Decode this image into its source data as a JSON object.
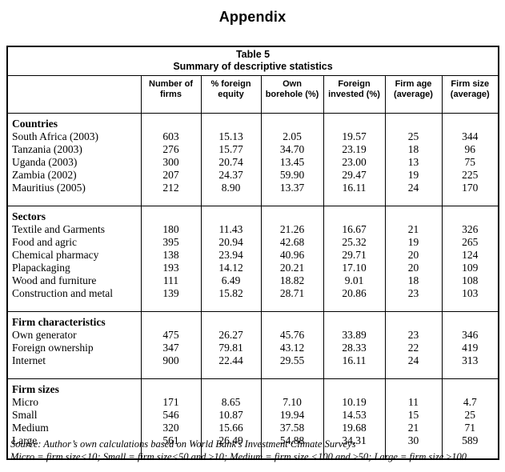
{
  "page": {
    "title": "Appendix"
  },
  "table": {
    "caption_line1": "Table 5",
    "caption_line2": "Summary of descriptive statistics",
    "columns": [
      "Number of firms",
      "% foreign equity",
      "Own borehole (%)",
      "Foreign invested (%)",
      "Firm age (average)",
      "Firm size (average)"
    ],
    "sections": [
      {
        "label": "Countries",
        "rows": [
          {
            "label": "South Africa (2003)",
            "values": [
              "603",
              "15.13",
              "2.05",
              "19.57",
              "25",
              "344"
            ]
          },
          {
            "label": "Tanzania (2003)",
            "values": [
              "276",
              "15.77",
              "34.70",
              "23.19",
              "18",
              "96"
            ]
          },
          {
            "label": "Uganda (2003)",
            "values": [
              "300",
              "20.74",
              "13.45",
              "23.00",
              "13",
              "75"
            ]
          },
          {
            "label": "Zambia (2002)",
            "values": [
              "207",
              "24.37",
              "59.90",
              "29.47",
              "19",
              "225"
            ]
          },
          {
            "label": "Mauritius (2005)",
            "values": [
              "212",
              "8.90",
              "13.37",
              "16.11",
              "24",
              "170"
            ]
          }
        ]
      },
      {
        "label": "Sectors",
        "rows": [
          {
            "label": "Textile and Garments",
            "values": [
              "180",
              "11.43",
              "21.26",
              "16.67",
              "21",
              "326"
            ]
          },
          {
            "label": "Food and agric",
            "values": [
              "395",
              "20.94",
              "42.68",
              "25.32",
              "19",
              "265"
            ]
          },
          {
            "label": "Chemical pharmacy",
            "values": [
              "138",
              "23.94",
              "40.96",
              "29.71",
              "20",
              "124"
            ]
          },
          {
            "label": "Plapackaging",
            "values": [
              "193",
              "14.12",
              "20.21",
              "17.10",
              "20",
              "109"
            ]
          },
          {
            "label": "Wood and furniture",
            "values": [
              "111",
              "6.49",
              "18.82",
              "9.01",
              "18",
              "108"
            ]
          },
          {
            "label": "Construction and metal",
            "values": [
              "139",
              "15.82",
              "28.71",
              "20.86",
              "23",
              "103"
            ]
          }
        ]
      },
      {
        "label": "Firm characteristics",
        "rows": [
          {
            "label": "Own generator",
            "values": [
              "475",
              "26.27",
              "45.76",
              "33.89",
              "23",
              "346"
            ]
          },
          {
            "label": "Foreign ownership",
            "values": [
              "347",
              "79.81",
              "43.12",
              "28.33",
              "22",
              "419"
            ]
          },
          {
            "label": "Internet",
            "values": [
              "900",
              "22.44",
              "29.55",
              "16.11",
              "24",
              "313"
            ]
          }
        ]
      },
      {
        "label": "Firm sizes",
        "rows": [
          {
            "label": "Micro",
            "values": [
              "171",
              "8.65",
              "7.10",
              "10.19",
              "11",
              "4.7"
            ]
          },
          {
            "label": "Small",
            "values": [
              "546",
              "10.87",
              "19.94",
              "14.53",
              "15",
              "25"
            ]
          },
          {
            "label": "Medium",
            "values": [
              "320",
              "15.66",
              "37.58",
              "19.68",
              "21",
              "71"
            ]
          },
          {
            "label": "Large",
            "values": [
              "561",
              "26.49",
              "54.88",
              "34.31",
              "30",
              "589"
            ]
          }
        ]
      }
    ]
  },
  "footer": {
    "source": "Source: Author’s own calculations based on World Bank’s Investment Climate Surveys",
    "note": "Micro = firm size<10; Small = firm size<50 and ≥10; Medium = firm size <100 and ≥50; Large = firm size ≥100"
  }
}
